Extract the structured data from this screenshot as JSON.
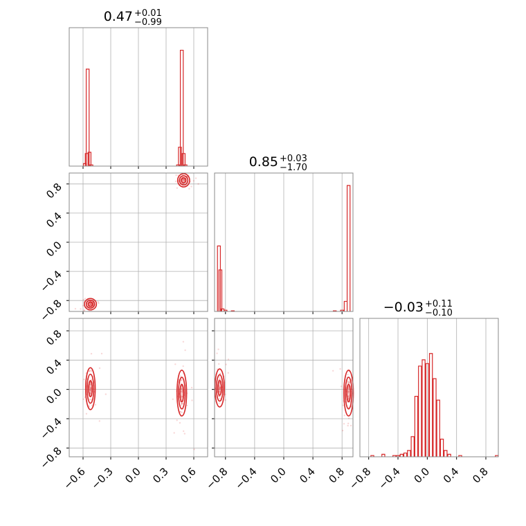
{
  "chart_data": {
    "type": "corner",
    "color": "#d62728",
    "grid": true,
    "params": [
      {
        "label": "",
        "median": "0.47",
        "plus": "+0.01",
        "minus": "−0.99",
        "range": [
          -0.75,
          0.75
        ],
        "ticks": [
          -0.6,
          -0.3,
          0.0,
          0.3,
          0.6
        ],
        "tick_labels": [
          "−0.6",
          "−0.3",
          "0.0",
          "0.3",
          "0.6"
        ]
      },
      {
        "label": "",
        "median": "0.85",
        "plus": "+0.03",
        "minus": "−1.70",
        "range": [
          -0.95,
          0.95
        ],
        "ticks": [
          -0.8,
          -0.4,
          0.0,
          0.4,
          0.8
        ],
        "tick_labels": [
          "−0.8",
          "−0.4",
          "0.0",
          "0.4",
          "0.8"
        ]
      },
      {
        "label": "",
        "median": "−0.03",
        "plus": "+0.11",
        "minus": "−0.10",
        "range": [
          -0.92,
          0.97
        ],
        "ticks": [
          -0.8,
          -0.4,
          0.0,
          0.4,
          0.8
        ],
        "tick_labels": [
          "−0.8",
          "−0.4",
          "0.0",
          "0.4",
          "0.8"
        ]
      }
    ],
    "histograms": [
      {
        "param": 0,
        "bins": [
          [
            -0.58,
            0.02
          ],
          [
            -0.56,
            0.1
          ],
          [
            -0.55,
            0.77
          ],
          [
            -0.53,
            0.11
          ],
          [
            -0.51,
            0.01
          ],
          [
            0.43,
            0.01
          ],
          [
            0.45,
            0.15
          ],
          [
            0.47,
            0.92
          ],
          [
            0.49,
            0.1
          ],
          [
            0.51,
            0.01
          ]
        ]
      },
      {
        "param": 1,
        "bins": [
          [
            -0.89,
            0.52
          ],
          [
            -0.87,
            0.33
          ],
          [
            -0.84,
            0.02
          ],
          [
            -0.8,
            0.01
          ],
          [
            -0.7,
            0.005
          ],
          [
            0.7,
            0.005
          ],
          [
            0.8,
            0.01
          ],
          [
            0.85,
            0.08
          ],
          [
            0.89,
            1.0
          ]
        ]
      },
      {
        "param": 2,
        "bins": [
          [
            -0.75,
            0.01
          ],
          [
            -0.6,
            0.02
          ],
          [
            -0.45,
            0.01
          ],
          [
            -0.4,
            0.01
          ],
          [
            -0.35,
            0.02
          ],
          [
            -0.3,
            0.03
          ],
          [
            -0.25,
            0.05
          ],
          [
            -0.2,
            0.16
          ],
          [
            -0.15,
            0.48
          ],
          [
            -0.1,
            0.72
          ],
          [
            -0.05,
            0.77
          ],
          [
            0.0,
            0.74
          ],
          [
            0.05,
            0.82
          ],
          [
            0.1,
            0.62
          ],
          [
            0.15,
            0.45
          ],
          [
            0.2,
            0.14
          ],
          [
            0.25,
            0.05
          ],
          [
            0.3,
            0.02
          ],
          [
            0.45,
            0.01
          ],
          [
            0.95,
            0.01
          ]
        ]
      }
    ],
    "scatter_panels": [
      {
        "x": 0,
        "y": 1,
        "clusters": [
          {
            "x": 0.49,
            "y": 0.85,
            "sx": 0.025,
            "sy": 0.035
          },
          {
            "x": -0.52,
            "y": -0.85,
            "sx": 0.025,
            "sy": 0.03
          }
        ]
      },
      {
        "x": 0,
        "y": 2,
        "clusters": [
          {
            "x": -0.52,
            "y": 0.01,
            "sx": 0.02,
            "sy": 0.11
          },
          {
            "x": 0.47,
            "y": -0.05,
            "sx": 0.02,
            "sy": 0.12
          }
        ]
      },
      {
        "x": 1,
        "y": 2,
        "clusters": [
          {
            "x": -0.88,
            "y": 0.02,
            "sx": 0.025,
            "sy": 0.1
          },
          {
            "x": 0.89,
            "y": -0.05,
            "sx": 0.025,
            "sy": 0.12
          }
        ]
      }
    ]
  }
}
